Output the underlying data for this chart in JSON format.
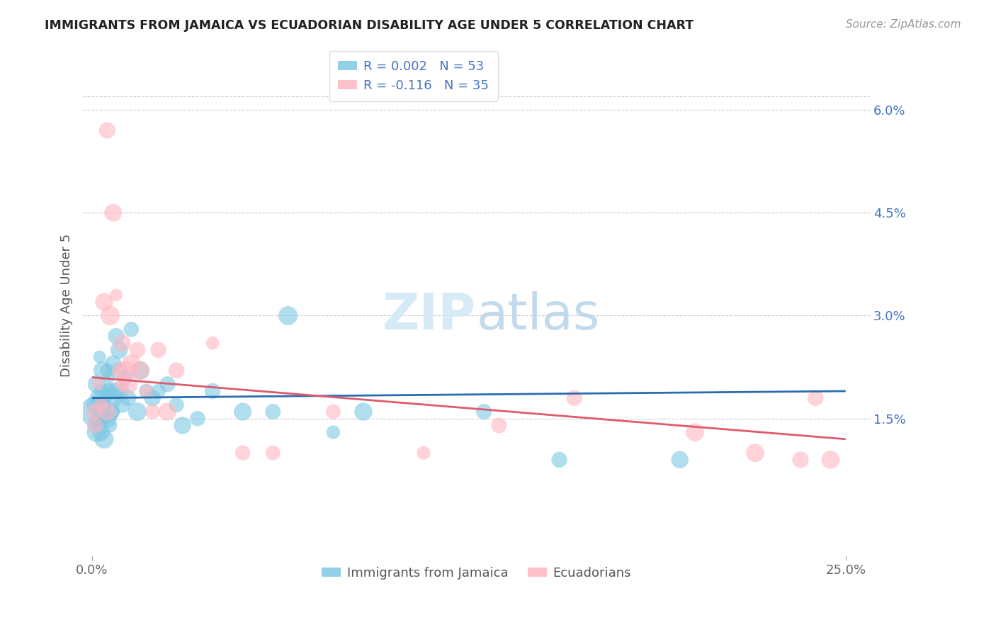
{
  "title": "IMMIGRANTS FROM JAMAICA VS ECUADORIAN DISABILITY AGE UNDER 5 CORRELATION CHART",
  "source": "Source: ZipAtlas.com",
  "ylabel": "Disability Age Under 5",
  "right_yticks": [
    "6.0%",
    "4.5%",
    "3.0%",
    "1.5%"
  ],
  "right_ytick_vals": [
    0.06,
    0.045,
    0.03,
    0.015
  ],
  "ylim": [
    -0.005,
    0.068
  ],
  "xlim": [
    -0.003,
    0.258
  ],
  "series1_color": "#7ec8e3",
  "series2_color": "#ffb6c1",
  "trendline1_color": "#2b6cb0",
  "trendline2_color": "#e05a6d",
  "background_color": "#ffffff",
  "grid_color": "#cccccc",
  "title_color": "#222222",
  "right_axis_color": "#4472c4",
  "legend1_label_r": "R = 0.002",
  "legend1_label_n": "N = 53",
  "legend2_label_r": "R = -0.116",
  "legend2_label_n": "N = 35",
  "bottom_legend1": "Immigrants from Jamaica",
  "bottom_legend2": "Ecuadorians",
  "series1_x": [
    0.0008,
    0.001,
    0.001,
    0.0015,
    0.0015,
    0.002,
    0.002,
    0.0025,
    0.003,
    0.003,
    0.003,
    0.0035,
    0.004,
    0.004,
    0.004,
    0.004,
    0.005,
    0.005,
    0.005,
    0.0055,
    0.006,
    0.006,
    0.006,
    0.007,
    0.007,
    0.007,
    0.008,
    0.008,
    0.009,
    0.009,
    0.01,
    0.01,
    0.011,
    0.012,
    0.013,
    0.015,
    0.016,
    0.018,
    0.02,
    0.022,
    0.025,
    0.028,
    0.03,
    0.035,
    0.04,
    0.05,
    0.06,
    0.065,
    0.08,
    0.09,
    0.13,
    0.155,
    0.195
  ],
  "series1_y": [
    0.016,
    0.017,
    0.014,
    0.02,
    0.013,
    0.018,
    0.015,
    0.024,
    0.019,
    0.016,
    0.013,
    0.022,
    0.018,
    0.017,
    0.015,
    0.012,
    0.022,
    0.019,
    0.015,
    0.021,
    0.019,
    0.016,
    0.014,
    0.023,
    0.018,
    0.016,
    0.027,
    0.019,
    0.025,
    0.022,
    0.019,
    0.017,
    0.021,
    0.018,
    0.028,
    0.016,
    0.022,
    0.019,
    0.018,
    0.019,
    0.02,
    0.017,
    0.014,
    0.015,
    0.019,
    0.016,
    0.016,
    0.03,
    0.013,
    0.016,
    0.016,
    0.009,
    0.009
  ],
  "series2_x": [
    0.0008,
    0.001,
    0.002,
    0.003,
    0.004,
    0.005,
    0.005,
    0.006,
    0.007,
    0.008,
    0.009,
    0.01,
    0.01,
    0.011,
    0.012,
    0.013,
    0.015,
    0.016,
    0.018,
    0.02,
    0.022,
    0.025,
    0.028,
    0.04,
    0.05,
    0.06,
    0.08,
    0.11,
    0.135,
    0.16,
    0.2,
    0.22,
    0.235,
    0.24,
    0.245
  ],
  "series2_y": [
    0.016,
    0.014,
    0.02,
    0.017,
    0.032,
    0.057,
    0.016,
    0.03,
    0.045,
    0.033,
    0.022,
    0.026,
    0.02,
    0.022,
    0.02,
    0.023,
    0.025,
    0.022,
    0.019,
    0.016,
    0.025,
    0.016,
    0.022,
    0.026,
    0.01,
    0.01,
    0.016,
    0.01,
    0.014,
    0.018,
    0.013,
    0.01,
    0.009,
    0.018,
    0.009
  ],
  "trendline1_x": [
    0.0,
    0.25
  ],
  "trendline1_y": [
    0.018,
    0.019
  ],
  "trendline2_x": [
    0.0,
    0.25
  ],
  "trendline2_y": [
    0.021,
    0.012
  ]
}
